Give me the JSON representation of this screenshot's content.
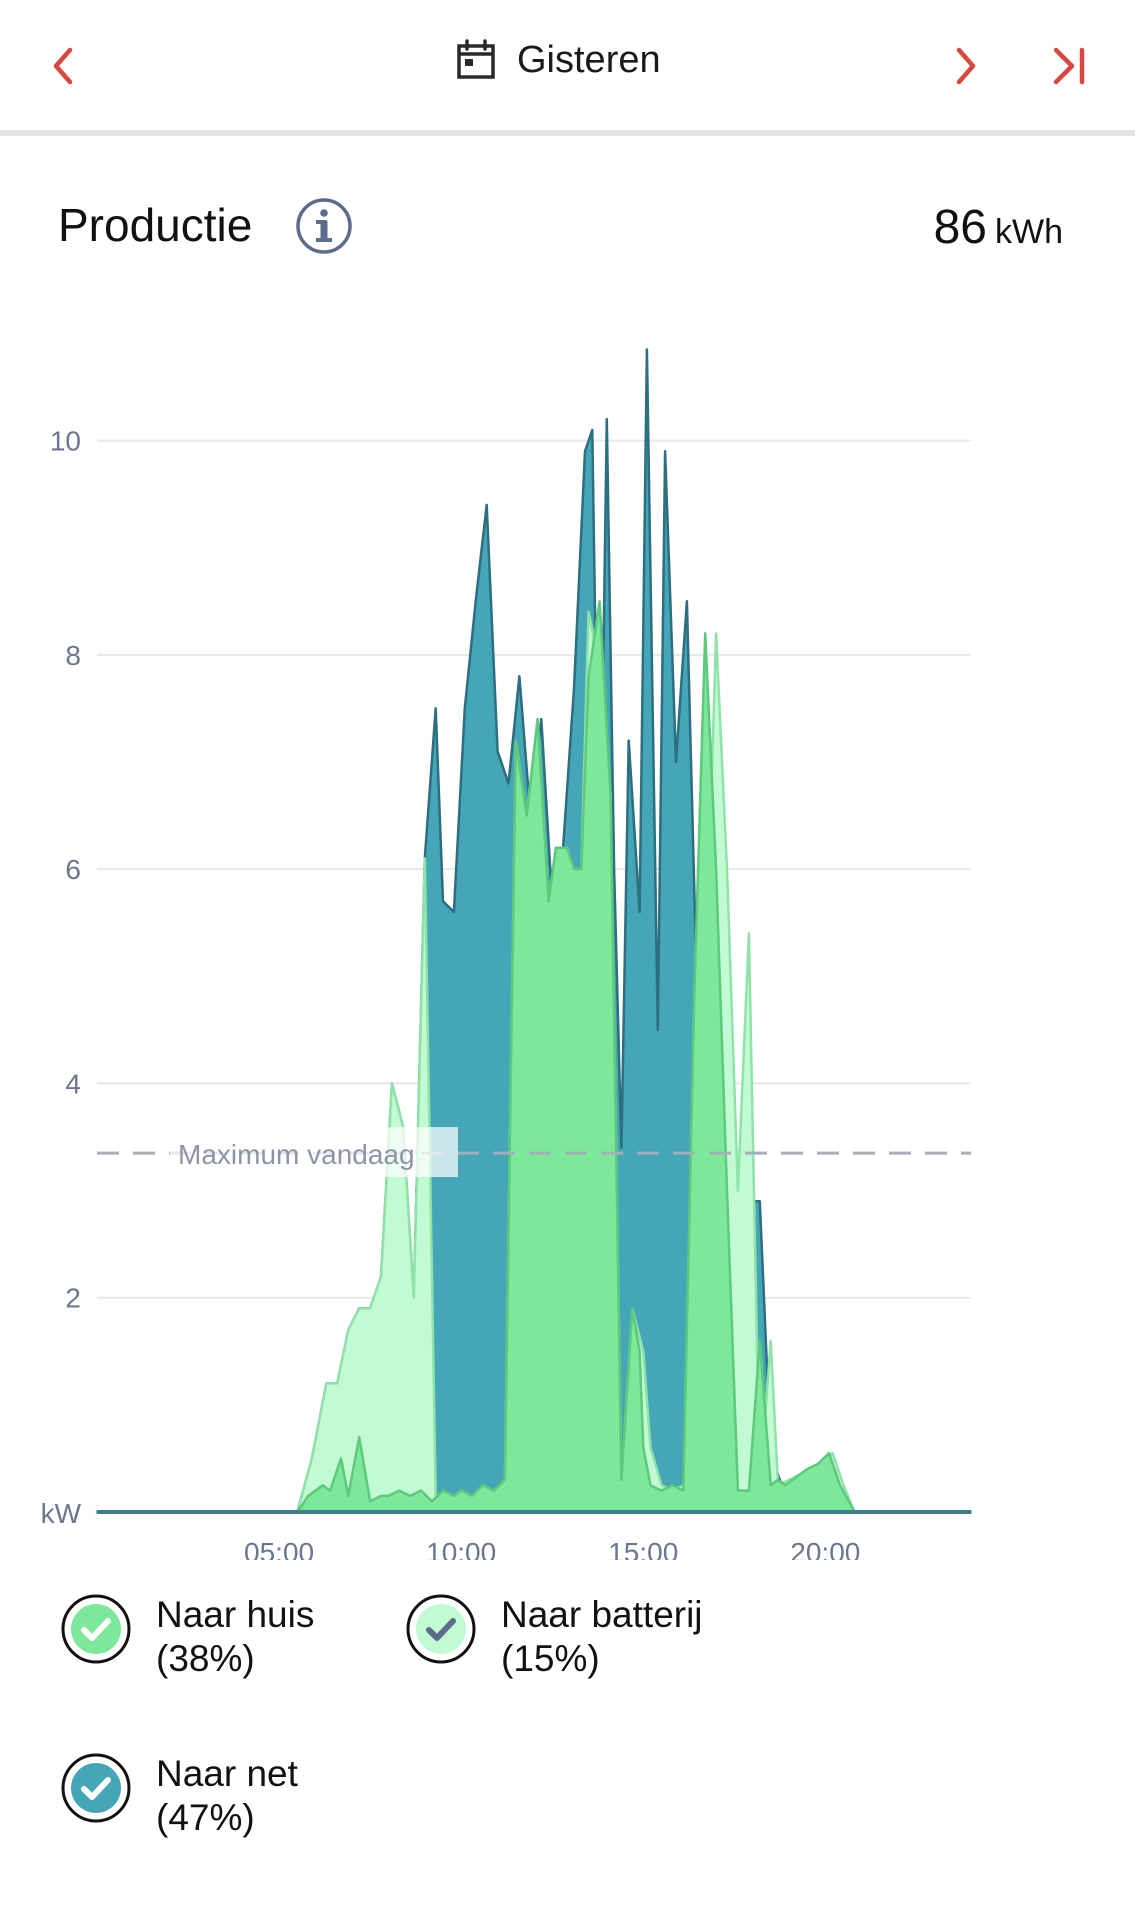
{
  "header": {
    "title": "Gisteren"
  },
  "section": {
    "title": "Productie",
    "total_value": "86",
    "total_unit": "kWh"
  },
  "colors": {
    "accent": "#d9473e",
    "naar_huis": "#7ee89a",
    "naar_batterij": "#c2fbd3",
    "naar_net": "#45a6b8"
  },
  "legend": [
    {
      "label": "Naar huis",
      "pct": "(38%)"
    },
    {
      "label": "Naar batterij",
      "pct": "(15%)"
    },
    {
      "label": "Naar net",
      "pct": "(47%)"
    }
  ],
  "chart_data": {
    "type": "area",
    "unit_label": "kW",
    "y_ticks": [
      "10",
      "8",
      "6",
      "4",
      "2"
    ],
    "ylim": [
      0,
      11.2
    ],
    "x_ticks": [
      "05:00",
      "10:00",
      "15:00",
      "20:00"
    ],
    "xlim_hours": [
      0,
      24
    ],
    "grid": true,
    "reference_line": {
      "label": "Maximum vandaag",
      "value": 3.35
    },
    "series": [
      {
        "name": "Naar huis",
        "x": [
          0,
          5.5,
          5.8,
          6.2,
          6.4,
          6.7,
          6.9,
          7.2,
          7.5,
          7.8,
          8.0,
          8.3,
          8.6,
          8.9,
          9.2,
          9.5,
          9.8,
          10.0,
          10.3,
          10.6,
          10.9,
          11.2,
          11.5,
          11.8,
          12.1,
          12.4,
          12.6,
          12.9,
          13.1,
          13.3,
          13.5,
          13.8,
          14.1,
          14.4,
          14.7,
          14.9,
          15.0,
          15.2,
          15.5,
          15.8,
          16.1,
          16.4,
          16.7,
          17.0,
          17.3,
          17.6,
          17.9,
          18.2,
          18.5,
          18.7,
          18.9,
          19.1,
          19.3,
          19.5,
          19.8,
          20.1,
          20.4,
          20.8,
          21.4,
          24
        ],
        "y": [
          0,
          0,
          0.15,
          0.25,
          0.2,
          0.5,
          0.15,
          0.7,
          0.1,
          0.15,
          0.15,
          0.2,
          0.15,
          0.2,
          0.1,
          0.2,
          0.15,
          0.2,
          0.15,
          0.25,
          0.2,
          0.3,
          7.2,
          6.5,
          7.4,
          5.7,
          6.2,
          6.2,
          6.0,
          6.0,
          7.8,
          8.5,
          6.7,
          0.3,
          1.9,
          1.5,
          0.6,
          0.25,
          0.2,
          0.25,
          0.2,
          4.8,
          8.2,
          6.0,
          3.0,
          0.2,
          0.2,
          1.6,
          0.25,
          0.3,
          0.25,
          0.3,
          0.35,
          0.4,
          0.45,
          0.55,
          0.25,
          0,
          0,
          0
        ]
      },
      {
        "name": "Naar batterij",
        "x": [
          0,
          5.5,
          5.9,
          6.3,
          6.6,
          6.9,
          7.2,
          7.5,
          7.8,
          8.1,
          8.4,
          8.7,
          9.0,
          9.3,
          9.6,
          9.8,
          10.0,
          10.3,
          10.6,
          10.9,
          11.2,
          11.5,
          11.8,
          12.1,
          12.4,
          12.6,
          12.9,
          13.1,
          13.3,
          13.5,
          13.8,
          14.1,
          14.4,
          14.7,
          15.0,
          15.2,
          15.5,
          15.8,
          16.1,
          16.4,
          16.7,
          17.0,
          17.3,
          17.6,
          17.9,
          18.2,
          18.5,
          18.7,
          19.0,
          19.3,
          19.6,
          19.9,
          20.2,
          20.5,
          20.8,
          21.4,
          24
        ],
        "y": [
          0,
          0,
          0.5,
          1.2,
          1.2,
          1.7,
          1.9,
          1.9,
          2.2,
          4.0,
          3.6,
          2.0,
          6.1,
          0.15,
          0.15,
          0.15,
          0.2,
          0.15,
          0.25,
          0.2,
          0.3,
          7.2,
          6.5,
          7.4,
          5.7,
          6.2,
          6.2,
          6.0,
          6.0,
          8.4,
          7.9,
          6.7,
          0.3,
          1.9,
          1.5,
          0.6,
          0.25,
          0.2,
          0.25,
          0.2,
          4.8,
          8.2,
          6.0,
          3.0,
          5.4,
          0.2,
          1.6,
          0.25,
          0.3,
          0.35,
          0.4,
          0.45,
          0.55,
          0.25,
          0,
          0,
          0
        ]
      },
      {
        "name": "Naar net",
        "x": [
          0,
          5.5,
          5.9,
          6.3,
          6.6,
          6.9,
          7.2,
          7.5,
          7.8,
          8.1,
          8.4,
          8.7,
          9.0,
          9.3,
          9.5,
          9.8,
          10.1,
          10.4,
          10.7,
          11.0,
          11.3,
          11.6,
          11.9,
          12.2,
          12.5,
          12.8,
          13.1,
          13.4,
          13.6,
          13.8,
          14.0,
          14.2,
          14.4,
          14.6,
          14.9,
          15.1,
          15.4,
          15.6,
          15.9,
          16.2,
          16.5,
          16.8,
          17.0,
          17.3,
          17.6,
          17.9,
          18.2,
          18.5,
          18.8,
          19.1,
          19.4,
          19.6,
          19.8,
          20.1,
          20.4,
          20.8,
          21.4,
          24
        ],
        "y": [
          0,
          0,
          0.5,
          1.2,
          1.2,
          1.7,
          1.9,
          1.9,
          2.2,
          4.0,
          3.6,
          2.0,
          6.1,
          7.5,
          5.7,
          5.6,
          7.5,
          8.5,
          9.4,
          7.1,
          6.8,
          7.8,
          6.5,
          7.4,
          5.7,
          6.2,
          7.7,
          9.9,
          10.1,
          5.5,
          10.2,
          6.0,
          3.4,
          7.2,
          5.6,
          10.85,
          4.5,
          9.9,
          7.0,
          8.5,
          4.5,
          6.7,
          5.2,
          4.5,
          2.4,
          2.9,
          2.9,
          0.55,
          0.25,
          0.2,
          0.15,
          0.1,
          0.05,
          0,
          0,
          0,
          0,
          0
        ]
      }
    ]
  }
}
